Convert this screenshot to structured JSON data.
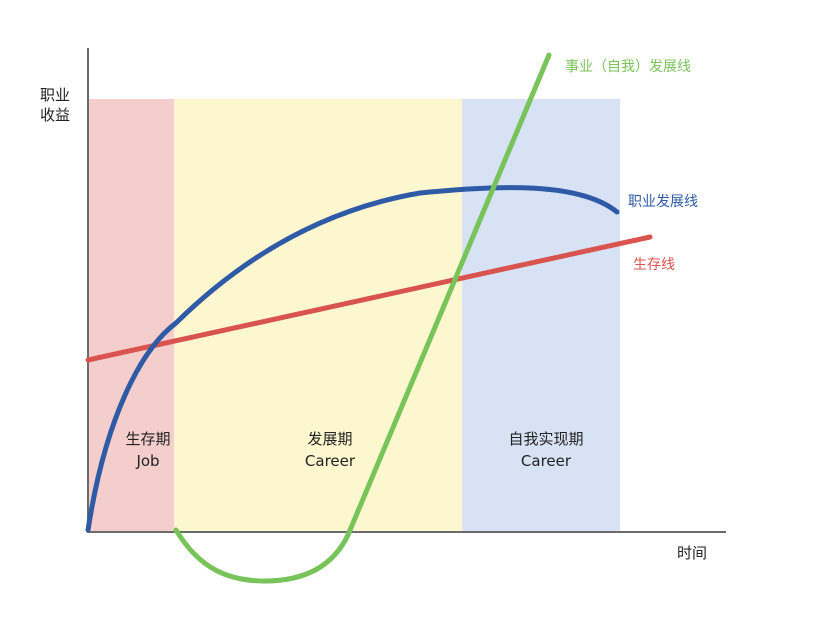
{
  "y_axis_label_lines": [
    "职业",
    "收益"
  ],
  "x_axis_label": "时间",
  "phases": [
    {
      "name": "生存期",
      "english": "Job",
      "color": "#f4cdcd"
    },
    {
      "name": "发展期",
      "english": "Career",
      "color": "#fdf7cf"
    },
    {
      "name": "自我实现期",
      "english": "Career",
      "color": "#d7e2f5"
    }
  ],
  "lines": {
    "career_label": "事业（自我）发展线",
    "career_color": "#78c35a",
    "occupation_label": "职业发展线",
    "occupation_color": "#2f5aa6",
    "survival_label": "生存线",
    "survival_color": "#d9534f"
  },
  "axis_color": "#6b6b6b"
}
